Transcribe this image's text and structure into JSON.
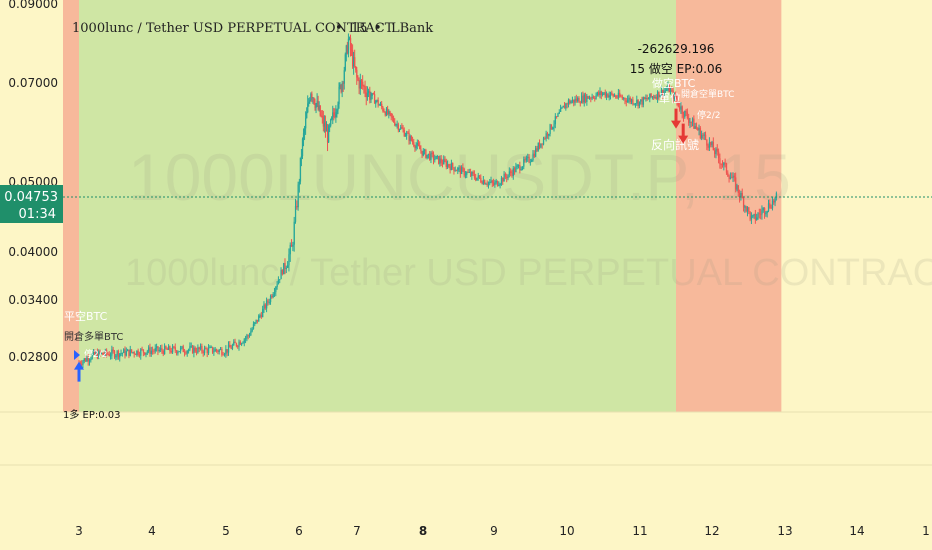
{
  "header": {
    "title": "1000lunc / Tether USD PERPETUAL CONTRACT",
    "interval": "15",
    "exchange": "LBank",
    "separator": "•"
  },
  "watermark": {
    "symbol": "1000LUNCUSDT.P, 15",
    "description": "1000lunc / Tether USD PERPETUAL CONTRACT"
  },
  "price_badge": {
    "price": "0.04753",
    "countdown": "01:34"
  },
  "colors": {
    "background": "#fdf6c6",
    "band_green": "#cfe6a4",
    "band_red": "#f7b99b",
    "candle_up": "#26a69a",
    "candle_down": "#ef5350",
    "last_price": "#1f8f6a",
    "arrow_blue": "#2962ff",
    "arrow_red": "#e53935"
  },
  "annotations": {
    "pnl_value": "-262629.196",
    "short_entry": "15 做空 EP:0.06",
    "left_close_short": "平空BTC",
    "left_open_long": "開倉多單BTC",
    "left_tp": "停2/2",
    "left_bottom_ep": "1多 EP:0.03",
    "right_short_btc": "做空BTC",
    "right_open_short": "開倉空單BTC",
    "right_tp": "停2/2",
    "right_fill": "單位",
    "reverse_signal": "反向訊號"
  },
  "chart_data": {
    "type": "candlestick",
    "title": "1000lunc / Tether USD PERPETUAL CONTRACT • 15 • LBank",
    "y_ticks": [
      "0.09000",
      "0.07000",
      "0.05000",
      "0.04000",
      "0.03400",
      "0.02800"
    ],
    "x_ticks": [
      "3",
      "4",
      "5",
      "6",
      "7",
      "8",
      "9",
      "10",
      "11",
      "12",
      "13",
      "14",
      "1"
    ],
    "y_range": [
      0.0248,
      0.09
    ],
    "y_scale": "log",
    "last_price": 0.04753,
    "price_path": [
      {
        "x": 3.0,
        "y": 0.0275
      },
      {
        "x": 3.2,
        "y": 0.0282
      },
      {
        "x": 4.0,
        "y": 0.0286
      },
      {
        "x": 4.5,
        "y": 0.0287
      },
      {
        "x": 5.0,
        "y": 0.0286
      },
      {
        "x": 5.3,
        "y": 0.03
      },
      {
        "x": 5.6,
        "y": 0.034
      },
      {
        "x": 5.9,
        "y": 0.04
      },
      {
        "x": 6.05,
        "y": 0.056
      },
      {
        "x": 6.2,
        "y": 0.068
      },
      {
        "x": 6.5,
        "y": 0.058
      },
      {
        "x": 6.75,
        "y": 0.07
      },
      {
        "x": 6.85,
        "y": 0.08
      },
      {
        "x": 7.0,
        "y": 0.07
      },
      {
        "x": 7.5,
        "y": 0.062
      },
      {
        "x": 8.0,
        "y": 0.055
      },
      {
        "x": 8.5,
        "y": 0.052
      },
      {
        "x": 9.0,
        "y": 0.0495
      },
      {
        "x": 9.5,
        "y": 0.054
      },
      {
        "x": 10.0,
        "y": 0.065
      },
      {
        "x": 10.5,
        "y": 0.067
      },
      {
        "x": 11.0,
        "y": 0.065
      },
      {
        "x": 11.4,
        "y": 0.068
      },
      {
        "x": 11.6,
        "y": 0.063
      },
      {
        "x": 12.0,
        "y": 0.056
      },
      {
        "x": 12.3,
        "y": 0.05
      },
      {
        "x": 12.55,
        "y": 0.044
      },
      {
        "x": 12.9,
        "y": 0.0475
      }
    ],
    "bands": [
      {
        "x0": 2.78,
        "x1": 3.0,
        "color": "red"
      },
      {
        "x0": 3.0,
        "x1": 11.5,
        "color": "green"
      },
      {
        "x0": 11.5,
        "x1": 12.95,
        "color": "red"
      }
    ],
    "signals": [
      {
        "x": 3.0,
        "y": 0.0265,
        "direction": "up",
        "color": "blue"
      },
      {
        "x": 11.5,
        "y": 0.062,
        "direction": "down",
        "color": "red"
      },
      {
        "x": 11.6,
        "y": 0.059,
        "direction": "down",
        "color": "red"
      }
    ],
    "grid": false
  }
}
